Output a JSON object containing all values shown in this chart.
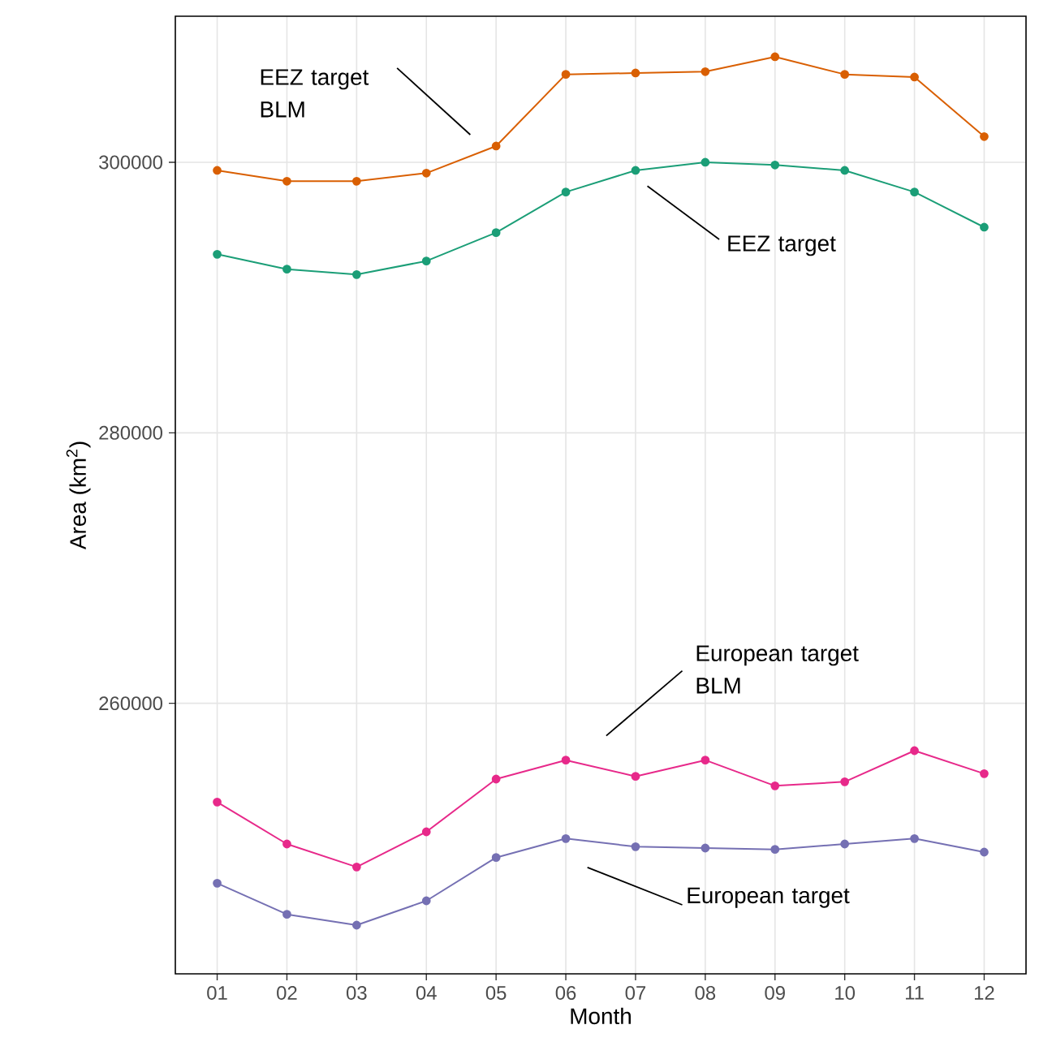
{
  "chart_data": {
    "type": "line",
    "xlabel": "Month",
    "ylabel": "Area  (km$^{2}$)",
    "categories": [
      "01",
      "02",
      "03",
      "04",
      "05",
      "06",
      "07",
      "08",
      "09",
      "10",
      "11",
      "12"
    ],
    "ylim": [
      240000,
      310800
    ],
    "yticks": [
      260000,
      280000,
      300000
    ],
    "grid": true,
    "marker": "circle",
    "line_style": "solid",
    "series": [
      {
        "name": "EEZ target BLM",
        "color": "#d95f02",
        "values": [
          299400,
          298600,
          298600,
          299200,
          301200,
          306500,
          306600,
          306700,
          307800,
          306500,
          306300,
          301900
        ]
      },
      {
        "name": "EEZ target",
        "color": "#1b9e77",
        "values": [
          293200,
          292100,
          291700,
          292700,
          294800,
          297800,
          299400,
          300000,
          299800,
          299400,
          297800,
          295200
        ]
      },
      {
        "name": "European target BLM",
        "color": "#e7298a",
        "values": [
          252700,
          249600,
          247900,
          250500,
          254400,
          255800,
          254600,
          255800,
          253900,
          254200,
          256500,
          254800
        ]
      },
      {
        "name": "European target",
        "color": "#7570b3",
        "values": [
          246700,
          244400,
          243600,
          245400,
          248600,
          250000,
          249400,
          249300,
          249200,
          249600,
          250000,
          249000
        ]
      }
    ]
  }
}
